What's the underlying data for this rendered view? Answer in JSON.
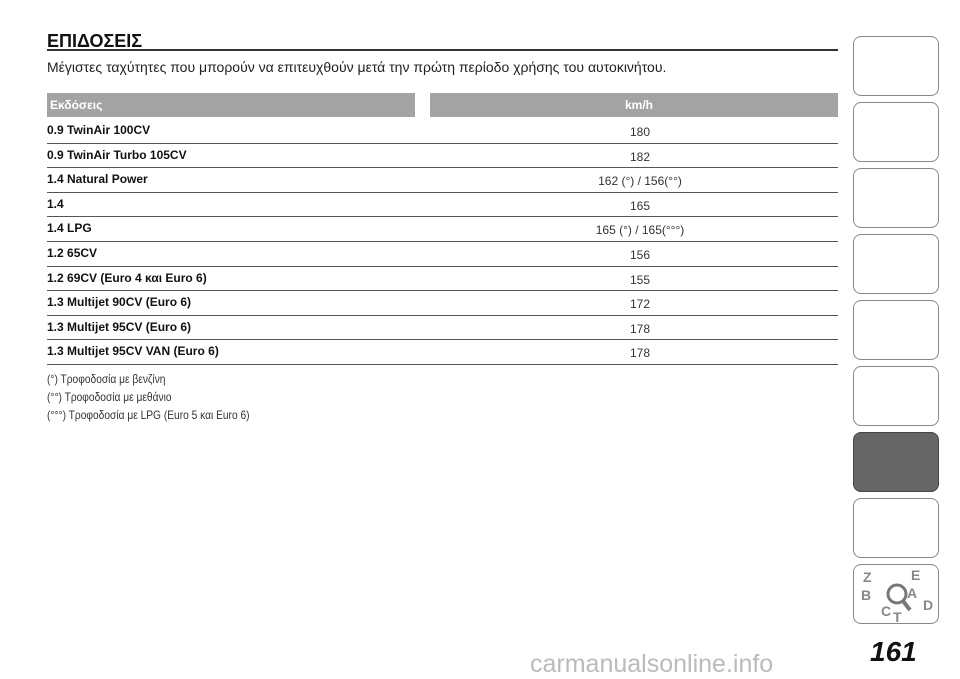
{
  "header": {
    "title": "ΕΠΙΔΟΣΕΙΣ",
    "subtitle": "Μέγιστες ταχύτητες που μπορούν να επιτευχθούν μετά την πρώτη περίοδο χρήσης του αυτοκινήτου."
  },
  "table": {
    "columns": [
      "Εκδόσεις",
      "km/h"
    ],
    "rows": [
      [
        "0.9 TwinAir 100CV",
        "180"
      ],
      [
        "0.9 TwinAir Turbo 105CV",
        "182"
      ],
      [
        "1.4 Natural Power",
        "162 (°) / 156(°°)"
      ],
      [
        "1.4",
        "165"
      ],
      [
        "1.4 LPG",
        "165 (°) / 165(°°°)"
      ],
      [
        "1.2 65CV",
        "156"
      ],
      [
        "1.2 69CV (Euro 4 και Euro 6)",
        "155"
      ],
      [
        "1.3 Multijet 90CV (Euro 6)",
        "172"
      ],
      [
        "1.3 Multijet 95CV (Euro 6)",
        "178"
      ],
      [
        "1.3 Multijet 95CV VAN (Euro 6)",
        "178"
      ]
    ]
  },
  "footnotes": [
    "(°) Τροφοδοσία με βενζίνη",
    "(°°) Τροφοδοσία με μεθάνιο",
    "(°°°) Τροφοδοσία με LPG (Euro 5 και Euro 6)"
  ],
  "sidebar": {
    "index_letters": [
      "Z",
      "E",
      "B",
      "A",
      "C",
      "T",
      "D"
    ]
  },
  "page_number": "161",
  "watermark": "carmanualsonline.info"
}
